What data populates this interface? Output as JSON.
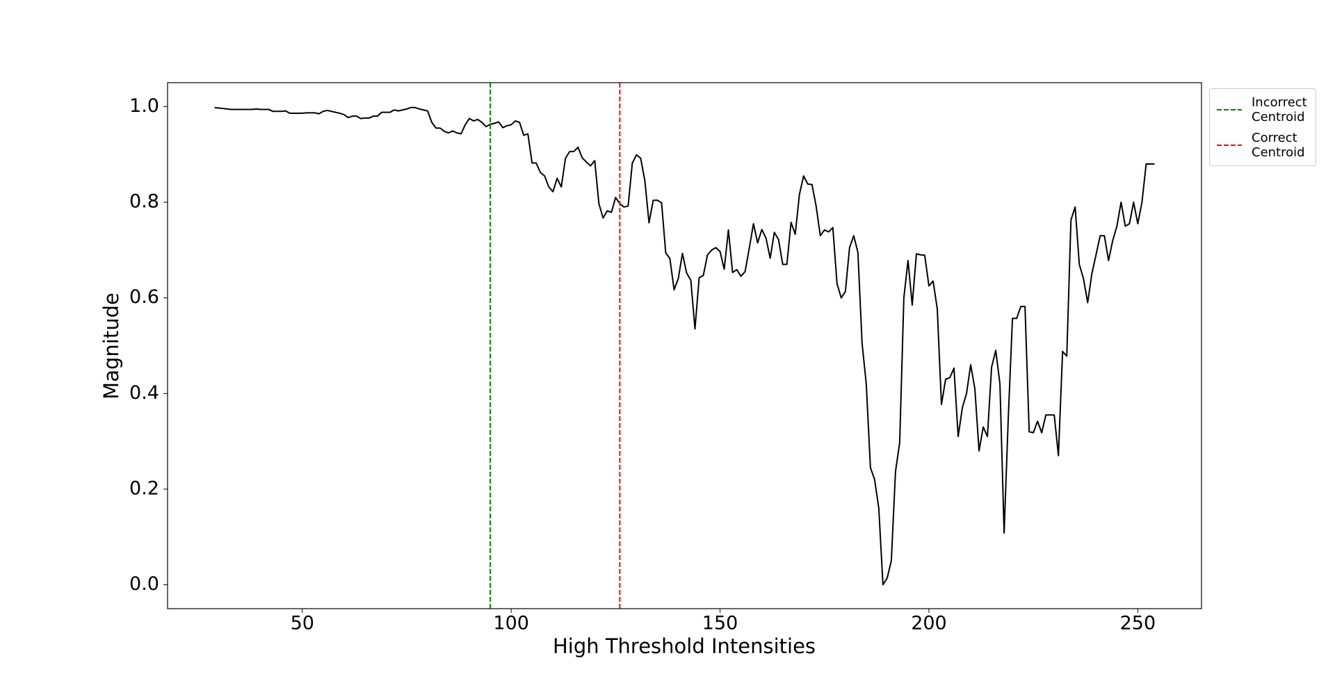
{
  "chart_data": {
    "type": "line",
    "xlabel": "High Threshold Intensities",
    "ylabel": "Magnitude",
    "x": [
      29,
      30,
      31,
      32,
      33,
      34,
      35,
      36,
      37,
      38,
      39,
      40,
      41,
      42,
      43,
      44,
      45,
      46,
      47,
      48,
      49,
      50,
      51,
      52,
      53,
      54,
      55,
      56,
      57,
      58,
      59,
      60,
      61,
      62,
      63,
      64,
      65,
      66,
      67,
      68,
      69,
      70,
      71,
      72,
      73,
      74,
      75,
      76,
      77,
      78,
      79,
      80,
      81,
      82,
      83,
      84,
      85,
      86,
      87,
      88,
      89,
      90,
      91,
      92,
      93,
      94,
      95,
      96,
      97,
      98,
      99,
      100,
      101,
      102,
      103,
      104,
      105,
      106,
      107,
      108,
      109,
      110,
      111,
      112,
      113,
      114,
      115,
      116,
      117,
      118,
      119,
      120,
      121,
      122,
      123,
      124,
      125,
      126,
      127,
      128,
      129,
      130,
      131,
      132,
      133,
      134,
      135,
      136,
      137,
      138,
      139,
      140,
      141,
      142,
      143,
      144,
      145,
      146,
      147,
      148,
      149,
      150,
      151,
      152,
      153,
      154,
      155,
      156,
      157,
      158,
      159,
      160,
      161,
      162,
      163,
      164,
      165,
      166,
      167,
      168,
      169,
      170,
      171,
      172,
      173,
      174,
      175,
      176,
      177,
      178,
      179,
      180,
      181,
      182,
      183,
      184,
      185,
      186,
      187,
      188,
      189,
      190,
      191,
      192,
      193,
      194,
      195,
      196,
      197,
      198,
      199,
      200,
      201,
      202,
      203,
      204,
      205,
      206,
      207,
      208,
      209,
      210,
      211,
      212,
      213,
      214,
      215,
      216,
      217,
      218,
      219,
      220,
      221,
      222,
      223,
      224,
      225,
      226,
      227,
      228,
      229,
      230,
      231,
      232,
      233,
      234,
      235,
      236,
      237,
      238,
      239,
      240,
      241,
      242,
      243,
      244,
      245,
      246,
      247,
      248,
      249,
      250,
      251,
      252,
      253,
      254
    ],
    "series": [
      {
        "color": "#000000",
        "values": [
          0.998,
          0.997,
          0.996,
          0.995,
          0.994,
          0.994,
          0.994,
          0.994,
          0.994,
          0.994,
          0.995,
          0.994,
          0.994,
          0.994,
          0.99,
          0.99,
          0.99,
          0.991,
          0.986,
          0.986,
          0.986,
          0.986,
          0.987,
          0.987,
          0.987,
          0.985,
          0.99,
          0.992,
          0.99,
          0.988,
          0.986,
          0.983,
          0.977,
          0.98,
          0.98,
          0.975,
          0.976,
          0.976,
          0.98,
          0.98,
          0.988,
          0.988,
          0.988,
          0.993,
          0.991,
          0.993,
          0.995,
          0.998,
          0.998,
          0.995,
          0.993,
          0.991,
          0.967,
          0.955,
          0.955,
          0.948,
          0.945,
          0.949,
          0.945,
          0.943,
          0.962,
          0.975,
          0.97,
          0.973,
          0.967,
          0.958,
          0.963,
          0.965,
          0.968,
          0.956,
          0.96,
          0.962,
          0.97,
          0.967,
          0.94,
          0.943,
          0.882,
          0.882,
          0.862,
          0.855,
          0.832,
          0.822,
          0.85,
          0.832,
          0.892,
          0.906,
          0.906,
          0.915,
          0.893,
          0.884,
          0.876,
          0.887,
          0.797,
          0.767,
          0.782,
          0.779,
          0.81,
          0.797,
          0.79,
          0.792,
          0.882,
          0.899,
          0.892,
          0.845,
          0.757,
          0.804,
          0.804,
          0.799,
          0.694,
          0.682,
          0.617,
          0.64,
          0.693,
          0.652,
          0.637,
          0.535,
          0.642,
          0.647,
          0.69,
          0.7,
          0.705,
          0.697,
          0.66,
          0.742,
          0.653,
          0.659,
          0.645,
          0.655,
          0.704,
          0.755,
          0.715,
          0.743,
          0.725,
          0.683,
          0.737,
          0.722,
          0.67,
          0.67,
          0.758,
          0.733,
          0.816,
          0.855,
          0.838,
          0.837,
          0.792,
          0.73,
          0.742,
          0.738,
          0.747,
          0.63,
          0.6,
          0.613,
          0.705,
          0.73,
          0.695,
          0.505,
          0.42,
          0.245,
          0.22,
          0.16,
          0.0,
          0.014,
          0.05,
          0.237,
          0.297,
          0.6,
          0.678,
          0.585,
          0.692,
          0.69,
          0.689,
          0.625,
          0.635,
          0.577,
          0.377,
          0.43,
          0.433,
          0.453,
          0.31,
          0.37,
          0.4,
          0.46,
          0.41,
          0.28,
          0.33,
          0.31,
          0.455,
          0.49,
          0.42,
          0.108,
          0.35,
          0.557,
          0.557,
          0.582,
          0.582,
          0.32,
          0.318,
          0.342,
          0.318,
          0.355,
          0.355,
          0.355,
          0.27,
          0.488,
          0.478,
          0.763,
          0.79,
          0.67,
          0.64,
          0.59,
          0.65,
          0.69,
          0.73,
          0.73,
          0.678,
          0.72,
          0.75,
          0.8,
          0.75,
          0.755,
          0.8,
          0.755,
          0.8,
          0.88,
          0.88,
          0.88
        ]
      }
    ],
    "reference_lines": [
      {
        "name": "Incorrect\nCentroid",
        "x": 95,
        "color": "#008000"
      },
      {
        "name": "Correct\nCentroid",
        "x": 126,
        "color": "#ff0000"
      }
    ],
    "xlim": [
      17.75,
      265.25
    ],
    "ylim": [
      -0.05,
      1.05
    ],
    "xticks": [
      50,
      100,
      150,
      200,
      250
    ],
    "yticks": [
      {
        "value": 0,
        "label": "0.0"
      },
      0.2,
      0.4,
      0.6,
      0.8,
      {
        "value": 1,
        "label": "1.0"
      }
    ],
    "legend": "upper right outside"
  }
}
